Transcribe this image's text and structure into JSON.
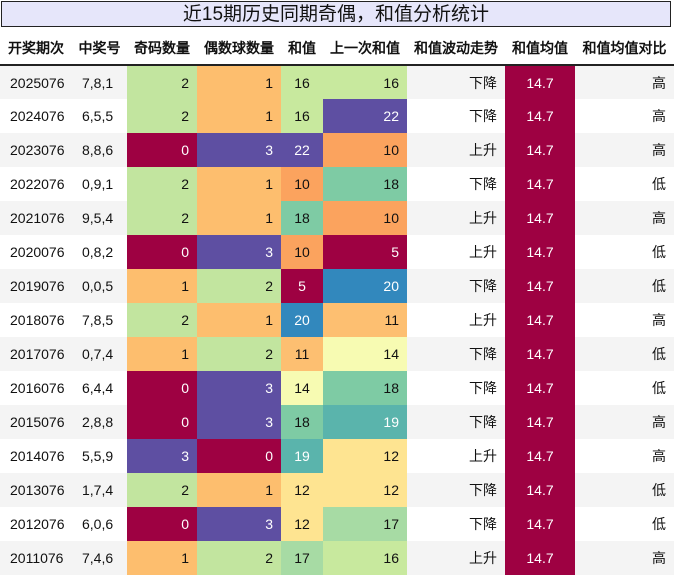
{
  "title": "近15期历史同期奇偶，和值分析统计",
  "headers": [
    "开奖期次",
    "中奖号",
    "奇码数量",
    "偶数球数量",
    "和值",
    "上一次和值",
    "和值波动走势",
    "和值均值",
    "和值均值对比"
  ],
  "colors": {
    "count": {
      "0": "#9e0142",
      "1": "#fdbe6e",
      "2": "#c2e59f",
      "3": "#5e4fa2"
    },
    "sum": {
      "5": "#9e0142",
      "10": "#fba35e",
      "11": "#fdbf71",
      "12": "#fee491",
      "14": "#f7fbb2",
      "16": "#c8e99e",
      "17": "#a7dba4",
      "18": "#7ecba4",
      "19": "#5ab4ac",
      "20": "#3288bd",
      "22": "#5e4fa2"
    },
    "mean": "#9e0142",
    "title_bg": "#e6e6fa"
  },
  "rows": [
    {
      "period": "2025076",
      "numbers": "7,8,1",
      "odd": "2",
      "even": "1",
      "sum": "16",
      "prev_sum": "16",
      "trend": "下降",
      "mean": "14.7",
      "compare": "高"
    },
    {
      "period": "2024076",
      "numbers": "6,5,5",
      "odd": "2",
      "even": "1",
      "sum": "16",
      "prev_sum": "22",
      "trend": "下降",
      "mean": "14.7",
      "compare": "高"
    },
    {
      "period": "2023076",
      "numbers": "8,8,6",
      "odd": "0",
      "even": "3",
      "sum": "22",
      "prev_sum": "10",
      "trend": "上升",
      "mean": "14.7",
      "compare": "高"
    },
    {
      "period": "2022076",
      "numbers": "0,9,1",
      "odd": "2",
      "even": "1",
      "sum": "10",
      "prev_sum": "18",
      "trend": "下降",
      "mean": "14.7",
      "compare": "低"
    },
    {
      "period": "2021076",
      "numbers": "9,5,4",
      "odd": "2",
      "even": "1",
      "sum": "18",
      "prev_sum": "10",
      "trend": "上升",
      "mean": "14.7",
      "compare": "高"
    },
    {
      "period": "2020076",
      "numbers": "0,8,2",
      "odd": "0",
      "even": "3",
      "sum": "10",
      "prev_sum": "5",
      "trend": "上升",
      "mean": "14.7",
      "compare": "低"
    },
    {
      "period": "2019076",
      "numbers": "0,0,5",
      "odd": "1",
      "even": "2",
      "sum": "5",
      "prev_sum": "20",
      "trend": "下降",
      "mean": "14.7",
      "compare": "低"
    },
    {
      "period": "2018076",
      "numbers": "7,8,5",
      "odd": "2",
      "even": "1",
      "sum": "20",
      "prev_sum": "11",
      "trend": "上升",
      "mean": "14.7",
      "compare": "高"
    },
    {
      "period": "2017076",
      "numbers": "0,7,4",
      "odd": "1",
      "even": "2",
      "sum": "11",
      "prev_sum": "14",
      "trend": "下降",
      "mean": "14.7",
      "compare": "低"
    },
    {
      "period": "2016076",
      "numbers": "6,4,4",
      "odd": "0",
      "even": "3",
      "sum": "14",
      "prev_sum": "18",
      "trend": "下降",
      "mean": "14.7",
      "compare": "低"
    },
    {
      "period": "2015076",
      "numbers": "2,8,8",
      "odd": "0",
      "even": "3",
      "sum": "18",
      "prev_sum": "19",
      "trend": "下降",
      "mean": "14.7",
      "compare": "高"
    },
    {
      "period": "2014076",
      "numbers": "5,5,9",
      "odd": "3",
      "even": "0",
      "sum": "19",
      "prev_sum": "12",
      "trend": "上升",
      "mean": "14.7",
      "compare": "高"
    },
    {
      "period": "2013076",
      "numbers": "1,7,4",
      "odd": "2",
      "even": "1",
      "sum": "12",
      "prev_sum": "12",
      "trend": "下降",
      "mean": "14.7",
      "compare": "低"
    },
    {
      "period": "2012076",
      "numbers": "6,0,6",
      "odd": "0",
      "even": "3",
      "sum": "12",
      "prev_sum": "17",
      "trend": "下降",
      "mean": "14.7",
      "compare": "低"
    },
    {
      "period": "2011076",
      "numbers": "7,4,6",
      "odd": "1",
      "even": "2",
      "sum": "17",
      "prev_sum": "16",
      "trend": "上升",
      "mean": "14.7",
      "compare": "高"
    }
  ]
}
